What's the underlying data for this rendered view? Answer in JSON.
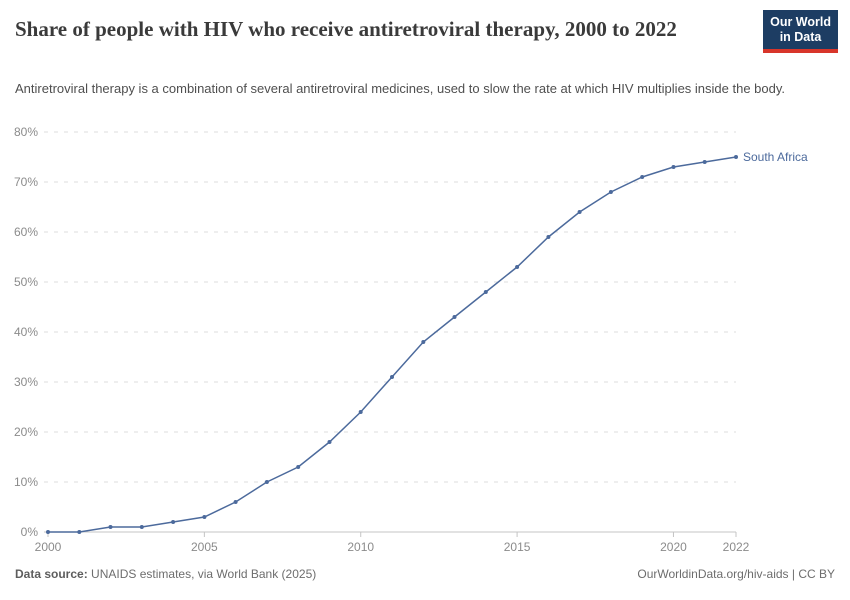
{
  "header": {
    "title": "Share of people with HIV who receive antiretroviral therapy, 2000 to 2022",
    "subtitle": "Antiretroviral therapy is a combination of several antiretroviral medicines, used to slow the rate at which HIV multiplies inside the body.",
    "logo": {
      "line1": "Our World",
      "line2": "in Data"
    }
  },
  "chart_data": {
    "type": "line",
    "title": "Share of people with HIV who receive antiretroviral therapy, 2000 to 2022",
    "xlabel": "",
    "ylabel": "",
    "xlim": [
      2000,
      2022
    ],
    "ylim": [
      0,
      80
    ],
    "grid": "horizontal-dashed",
    "legend_position": "end-of-line-label",
    "x_ticks": [
      2000,
      2005,
      2010,
      2015,
      2020,
      2022
    ],
    "y_ticks": [
      0,
      10,
      20,
      30,
      40,
      50,
      60,
      70,
      80
    ],
    "y_tick_suffix": "%",
    "x": [
      2000,
      2001,
      2002,
      2003,
      2004,
      2005,
      2006,
      2007,
      2008,
      2009,
      2010,
      2011,
      2012,
      2013,
      2014,
      2015,
      2016,
      2017,
      2018,
      2019,
      2020,
      2021,
      2022
    ],
    "series": [
      {
        "name": "South Africa",
        "color": "#4C6A9C",
        "values": [
          0,
          0,
          1,
          1,
          2,
          3,
          6,
          10,
          13,
          18,
          24,
          31,
          38,
          43,
          48,
          53,
          59,
          64,
          68,
          71,
          73,
          74,
          75
        ]
      }
    ]
  },
  "footer": {
    "source_label": "Data source:",
    "source_text": "UNAIDS estimates, via World Bank (2025)",
    "attribution": "OurWorldinData.org/hiv-aids | CC BY"
  },
  "colors": {
    "line": "#4C6A9C",
    "grid": "#dcdcdc",
    "axis": "#c4c4c4",
    "tick_label": "#8b8b8b",
    "title": "#3a3a3a",
    "subtitle": "#4f4f4f",
    "footer": "#6d6d6d",
    "logo_bg": "#1d3d63",
    "logo_stripe": "#d8352a"
  }
}
